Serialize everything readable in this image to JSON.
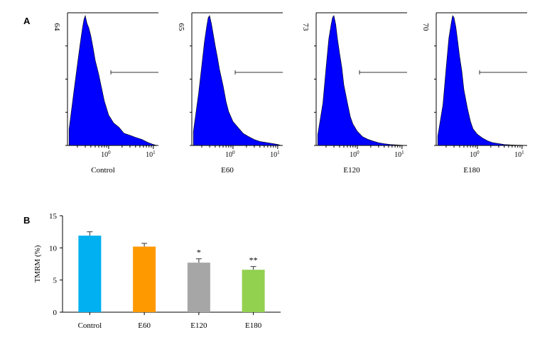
{
  "figure": {
    "panel_a_label": "A",
    "panel_b_label": "B"
  },
  "colors": {
    "histogram_fill": "#0000ff",
    "axis": "#000000"
  },
  "chart_data": [
    {
      "type": "area",
      "title": "Control",
      "y_max_label": "64",
      "x_scale": "log",
      "x_ticks": [
        "10^0",
        "10^1"
      ],
      "gate": "marker from just above 10^0 to the right end",
      "histogram": {
        "x": [
          0.13,
          0.17,
          0.2,
          0.23,
          0.26,
          0.28,
          0.3,
          0.33,
          0.36,
          0.4,
          0.45,
          0.5,
          0.6,
          0.7,
          0.8,
          1.0,
          1.3,
          1.7,
          2.2,
          3.0,
          4.0,
          5.5,
          7.5,
          10.0,
          12.0
        ],
        "y": [
          8,
          28,
          40,
          50,
          58,
          62,
          64,
          60,
          58,
          54,
          48,
          42,
          35,
          28,
          22,
          15,
          11,
          9,
          6,
          5,
          4,
          3,
          1.5,
          0.5,
          0
        ]
      }
    },
    {
      "type": "area",
      "title": "E60",
      "y_max_label": "65",
      "x_scale": "log",
      "x_ticks": [
        "10^0",
        "10^1"
      ],
      "gate": "marker from just above 10^0 to the right end",
      "histogram": {
        "x": [
          0.13,
          0.17,
          0.2,
          0.23,
          0.26,
          0.28,
          0.3,
          0.33,
          0.36,
          0.4,
          0.45,
          0.5,
          0.6,
          0.7,
          0.8,
          1.0,
          1.3,
          1.7,
          2.2,
          3.0,
          4.0,
          5.5,
          7.5,
          10.0,
          12.0
        ],
        "y": [
          7,
          26,
          40,
          52,
          60,
          64,
          65,
          61,
          56,
          50,
          44,
          38,
          30,
          22,
          17,
          12,
          9,
          6,
          4.5,
          3,
          2,
          1.5,
          1,
          0.5,
          0
        ]
      }
    },
    {
      "type": "area",
      "title": "E120",
      "y_max_label": "73",
      "x_scale": "log",
      "x_ticks": [
        "10^0",
        "10^1"
      ],
      "gate": "marker from just above 10^0 to the right end",
      "histogram": {
        "x": [
          0.13,
          0.17,
          0.2,
          0.23,
          0.26,
          0.28,
          0.3,
          0.33,
          0.36,
          0.4,
          0.45,
          0.5,
          0.6,
          0.7,
          0.8,
          1.0,
          1.3,
          1.7,
          2.2,
          3.0,
          4.0,
          5.5,
          7.5,
          10.0,
          12.0
        ],
        "y": [
          6,
          24,
          44,
          60,
          68,
          72,
          73,
          68,
          60,
          52,
          44,
          34,
          24,
          16,
          12,
          8,
          5,
          3.5,
          2.5,
          1.5,
          1,
          0.5,
          0.3,
          0.1,
          0
        ]
      }
    },
    {
      "type": "area",
      "title": "E180",
      "y_max_label": "70",
      "x_scale": "log",
      "x_ticks": [
        "10^0",
        "10^1"
      ],
      "gate": "marker from just above 10^0 to the right end",
      "histogram": {
        "x": [
          0.13,
          0.17,
          0.2,
          0.23,
          0.26,
          0.28,
          0.3,
          0.33,
          0.36,
          0.4,
          0.45,
          0.5,
          0.6,
          0.7,
          0.8,
          1.0,
          1.3,
          1.7,
          2.2,
          3.0,
          4.0,
          5.5,
          7.5,
          10.0,
          12.0
        ],
        "y": [
          5,
          22,
          42,
          58,
          66,
          70,
          69,
          64,
          57,
          48,
          40,
          30,
          20,
          13,
          9,
          6,
          4,
          2.5,
          1.5,
          1,
          0.5,
          0.3,
          0.2,
          0.1,
          0
        ]
      }
    },
    {
      "type": "bar",
      "categories": [
        "Control",
        "E60",
        "E120",
        "E180"
      ],
      "values": [
        11.9,
        10.2,
        7.7,
        6.6
      ],
      "errors": [
        0.6,
        0.5,
        0.6,
        0.5
      ],
      "significance": [
        "",
        "",
        "*",
        "**"
      ],
      "colors": [
        "#00b0f0",
        "#ff9900",
        "#a6a6a6",
        "#92d050"
      ],
      "ylabel": "TMRM (%)",
      "xlabel": "",
      "ylim": [
        0,
        15
      ],
      "yticks": [
        0,
        5,
        10,
        15
      ],
      "grid": false
    }
  ]
}
